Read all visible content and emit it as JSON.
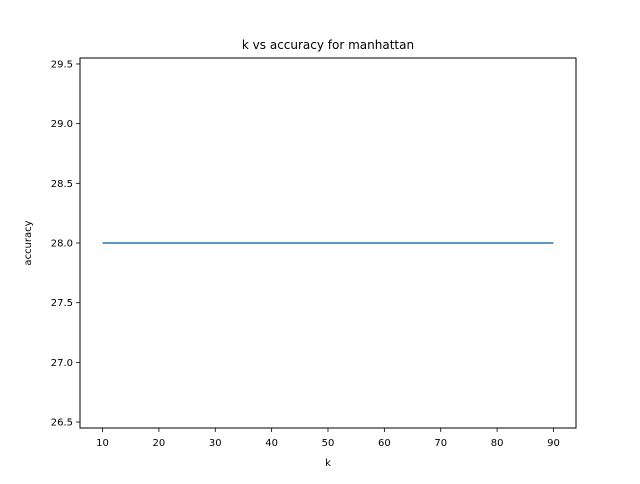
{
  "chart_data": {
    "type": "line",
    "title": "k vs accuracy for manhattan",
    "xlabel": "k",
    "ylabel": "accuracy",
    "xlim": [
      6,
      94
    ],
    "ylim": [
      26.45,
      29.55
    ],
    "x_ticks": [
      10,
      20,
      30,
      40,
      50,
      60,
      70,
      80,
      90
    ],
    "y_ticks": [
      26.5,
      27.0,
      27.5,
      28.0,
      28.5,
      29.0,
      29.5
    ],
    "grid": false,
    "legend": "none",
    "series": [
      {
        "color": "#1f77b4",
        "x": [
          10,
          20,
          30,
          40,
          50,
          60,
          70,
          80,
          90
        ],
        "y": [
          28.0,
          28.0,
          28.0,
          28.0,
          28.0,
          28.0,
          28.0,
          28.0,
          28.0
        ]
      }
    ]
  }
}
